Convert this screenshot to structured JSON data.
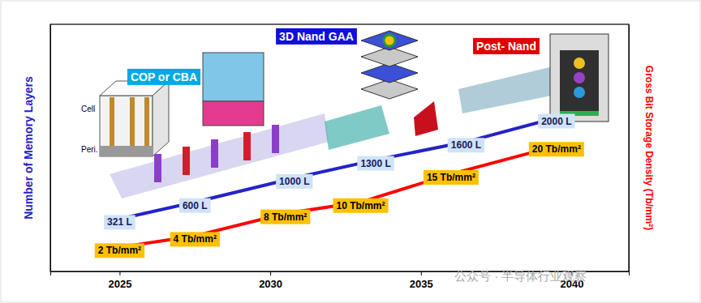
{
  "chart_data": {
    "type": "line",
    "xlim": [
      2022.7,
      2041.9
    ],
    "xticks": [
      2025,
      2030,
      2035,
      2040
    ],
    "ylim": [
      -550,
      3550
    ],
    "y2lim": [
      -2.3,
      41.6
    ],
    "ylabel": "Number of Memory Layers",
    "y2label": "Gross Bit Storage Density (Tb/mm²)",
    "tick_labels": "x",
    "data_labels": true,
    "series": [
      {
        "color": "#2323c8",
        "x": [
          2025,
          2027.5,
          2030.8,
          2033.5,
          2036.5,
          2039.5
        ],
        "values": [
          321,
          600,
          1000,
          1300,
          1600,
          2000
        ],
        "value_labels": [
          "321 L",
          "600 L",
          "1000 L",
          "1300 L",
          "1600 L",
          "2000 L"
        ]
      },
      {
        "color": "#ff0000",
        "axis": "y2",
        "x": [
          2025,
          2027.5,
          2030.5,
          2033,
          2036,
          2039.5
        ],
        "values": [
          2,
          4,
          8,
          10,
          15,
          20
        ],
        "value_labels": [
          "2 Tb/mm²",
          "4 Tb/mm²",
          "8 Tb/mm²",
          "10 Tb/mm²",
          "15 Tb/mm²",
          "20 Tb/mm²"
        ]
      }
    ],
    "phases": [
      {
        "label": "COP or CBA",
        "color": "#00a9e6"
      },
      {
        "label": "3D Nand GAA",
        "color": "#1010d8"
      },
      {
        "label": "Post- Nand",
        "color": "#e00000"
      }
    ],
    "annotations": [
      "Cell",
      "Peri.",
      "公众号 · 半导体行业观察"
    ]
  }
}
